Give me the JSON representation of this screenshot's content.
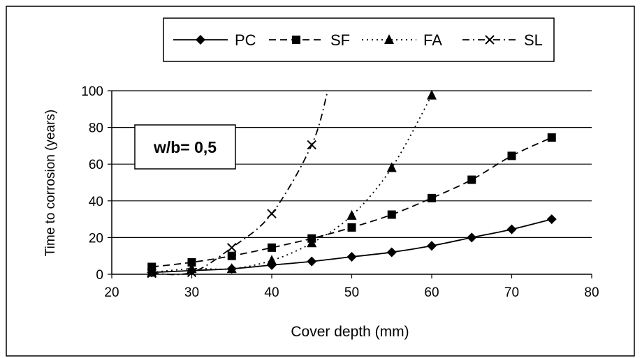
{
  "chart_data": {
    "type": "line",
    "title": "",
    "xlabel": "Cover depth (mm)",
    "ylabel": "Time to corrosion (years)",
    "xlim": [
      20,
      80
    ],
    "ylim": [
      0,
      100
    ],
    "xticks": [
      "20",
      "30",
      "40",
      "50",
      "60",
      "70",
      "80"
    ],
    "yticks": [
      "0",
      "20",
      "40",
      "60",
      "80",
      "100"
    ],
    "grid": "horizontal",
    "legend_position": "top",
    "annotation": "w/b= 0,5",
    "series": [
      {
        "name": "PC",
        "marker": "diamond",
        "line_style": "solid",
        "x": [
          25,
          30,
          35,
          40,
          45,
          50,
          55,
          60,
          65,
          70,
          75
        ],
        "y": [
          1,
          2,
          3,
          5,
          7,
          9.5,
          12,
          15.5,
          20,
          24.5,
          30
        ]
      },
      {
        "name": "SF",
        "marker": "square",
        "line_style": "dashed",
        "x": [
          25,
          30,
          35,
          40,
          45,
          50,
          55,
          60,
          65,
          70,
          75
        ],
        "y": [
          4,
          6.5,
          10,
          14.5,
          19.5,
          25.5,
          32.5,
          41.5,
          51.5,
          64.5,
          74.5
        ]
      },
      {
        "name": "FA",
        "marker": "triangle",
        "line_style": "dotted",
        "x": [
          25,
          30,
          35,
          40,
          45,
          50,
          55,
          60
        ],
        "y": [
          1,
          3,
          3,
          7.5,
          17,
          32,
          58,
          97.5
        ]
      },
      {
        "name": "SL",
        "marker": "x",
        "line_style": "dash-dot",
        "x": [
          25,
          30,
          35,
          40,
          45,
          47
        ],
        "y": [
          0.5,
          1,
          14.5,
          33,
          70.5,
          100
        ]
      }
    ]
  }
}
